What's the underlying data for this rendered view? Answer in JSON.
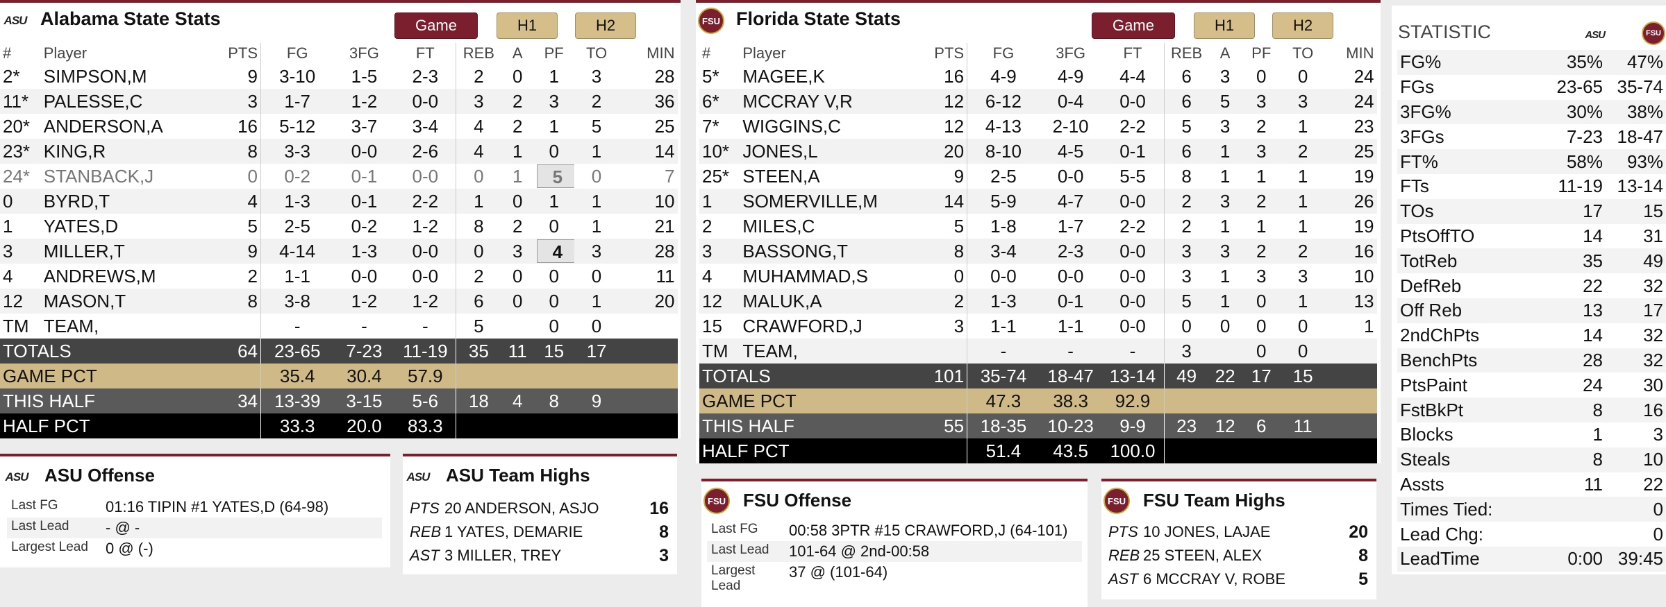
{
  "colors": {
    "accent": "#7b1f2e",
    "gold": "#cfb987",
    "dark": "#444444",
    "black": "#000000"
  },
  "asu": {
    "logo_text": "ASU",
    "title": "Alabama State Stats",
    "tabs": [
      "Game",
      "H1",
      "H2"
    ],
    "headers": [
      "#",
      "Player",
      "PTS",
      "FG",
      "3FG",
      "FT",
      "REB",
      "A",
      "PF",
      "TO",
      "MIN"
    ],
    "players": [
      {
        "num": "2*",
        "name": "SIMPSON,M",
        "pts": "9",
        "fg": "3-10",
        "tfg": "1-5",
        "ft": "2-3",
        "reb": "2",
        "a": "0",
        "pf": "1",
        "to": "3",
        "min": "28"
      },
      {
        "num": "11*",
        "name": "PALESSE,C",
        "pts": "3",
        "fg": "1-7",
        "tfg": "1-2",
        "ft": "0-0",
        "reb": "3",
        "a": "2",
        "pf": "3",
        "to": "2",
        "min": "36"
      },
      {
        "num": "20*",
        "name": "ANDERSON,A",
        "pts": "16",
        "fg": "5-12",
        "tfg": "3-7",
        "ft": "3-4",
        "reb": "4",
        "a": "2",
        "pf": "1",
        "to": "5",
        "min": "25"
      },
      {
        "num": "23*",
        "name": "KING,R",
        "pts": "8",
        "fg": "3-3",
        "tfg": "0-0",
        "ft": "2-6",
        "reb": "4",
        "a": "1",
        "pf": "0",
        "to": "1",
        "min": "14"
      },
      {
        "num": "24*",
        "name": "STANBACK,J",
        "pts": "0",
        "fg": "0-2",
        "tfg": "0-1",
        "ft": "0-0",
        "reb": "0",
        "a": "1",
        "pf": "5",
        "to": "0",
        "min": "7"
      },
      {
        "num": "0",
        "name": "BYRD,T",
        "pts": "4",
        "fg": "1-3",
        "tfg": "0-1",
        "ft": "2-2",
        "reb": "1",
        "a": "0",
        "pf": "1",
        "to": "1",
        "min": "10"
      },
      {
        "num": "1",
        "name": "YATES,D",
        "pts": "5",
        "fg": "2-5",
        "tfg": "0-2",
        "ft": "1-2",
        "reb": "8",
        "a": "2",
        "pf": "0",
        "to": "1",
        "min": "21"
      },
      {
        "num": "3",
        "name": "MILLER,T",
        "pts": "9",
        "fg": "4-14",
        "tfg": "1-3",
        "ft": "0-0",
        "reb": "0",
        "a": "3",
        "pf": "4",
        "to": "3",
        "min": "28"
      },
      {
        "num": "4",
        "name": "ANDREWS,M",
        "pts": "2",
        "fg": "1-1",
        "tfg": "0-0",
        "ft": "0-0",
        "reb": "2",
        "a": "0",
        "pf": "0",
        "to": "0",
        "min": "11"
      },
      {
        "num": "12",
        "name": "MASON,T",
        "pts": "8",
        "fg": "3-8",
        "tfg": "1-2",
        "ft": "1-2",
        "reb": "6",
        "a": "0",
        "pf": "0",
        "to": "1",
        "min": "20"
      },
      {
        "num": "TM",
        "name": "TEAM,",
        "pts": "",
        "fg": "-",
        "tfg": "-",
        "ft": "-",
        "reb": "5",
        "a": "",
        "pf": "0",
        "to": "0",
        "min": ""
      }
    ],
    "totals": {
      "label": "TOTALS",
      "pts": "64",
      "fg": "23-65",
      "tfg": "7-23",
      "ft": "11-19",
      "reb": "35",
      "a": "11",
      "pf": "15",
      "to": "17"
    },
    "game_pct": {
      "label": "GAME PCT",
      "fg": "35.4",
      "tfg": "30.4",
      "ft": "57.9"
    },
    "this_half": {
      "label": "THIS HALF",
      "pts": "34",
      "fg": "13-39",
      "tfg": "3-15",
      "ft": "5-6",
      "reb": "18",
      "a": "4",
      "pf": "8",
      "to": "9"
    },
    "half_pct": {
      "label": "HALF PCT",
      "fg": "33.3",
      "tfg": "20.0",
      "ft": "83.3"
    },
    "offense": {
      "title": "ASU Offense",
      "rows": [
        {
          "k": "Last FG",
          "v": "01:16 TIPIN #1 YATES,D (64-98)"
        },
        {
          "k": "Last Lead",
          "v": "- @ -"
        },
        {
          "k": "Largest Lead",
          "v": "0 @ (-)"
        }
      ]
    },
    "highs": {
      "title": "ASU Team Highs",
      "rows": [
        {
          "cat": "PTS",
          "who": "20 ANDERSON, ASJO",
          "v": "16"
        },
        {
          "cat": "REB",
          "who": "1 YATES, DEMARIE",
          "v": "8"
        },
        {
          "cat": "AST",
          "who": "3 MILLER, TREY",
          "v": "3"
        }
      ]
    }
  },
  "fsu": {
    "logo_text": "FSU",
    "title": "Florida State Stats",
    "tabs": [
      "Game",
      "H1",
      "H2"
    ],
    "headers": [
      "#",
      "Player",
      "PTS",
      "FG",
      "3FG",
      "FT",
      "REB",
      "A",
      "PF",
      "TO",
      "MIN"
    ],
    "players": [
      {
        "num": "5*",
        "name": "MAGEE,K",
        "pts": "16",
        "fg": "4-9",
        "tfg": "4-9",
        "ft": "4-4",
        "reb": "6",
        "a": "3",
        "pf": "0",
        "to": "0",
        "min": "24"
      },
      {
        "num": "6*",
        "name": "MCCRAY V,R",
        "pts": "12",
        "fg": "6-12",
        "tfg": "0-4",
        "ft": "0-0",
        "reb": "6",
        "a": "5",
        "pf": "3",
        "to": "3",
        "min": "24"
      },
      {
        "num": "7*",
        "name": "WIGGINS,C",
        "pts": "12",
        "fg": "4-13",
        "tfg": "2-10",
        "ft": "2-2",
        "reb": "5",
        "a": "3",
        "pf": "2",
        "to": "1",
        "min": "23"
      },
      {
        "num": "10*",
        "name": "JONES,L",
        "pts": "20",
        "fg": "8-10",
        "tfg": "4-5",
        "ft": "0-1",
        "reb": "6",
        "a": "1",
        "pf": "3",
        "to": "2",
        "min": "25"
      },
      {
        "num": "25*",
        "name": "STEEN,A",
        "pts": "9",
        "fg": "2-5",
        "tfg": "0-0",
        "ft": "5-5",
        "reb": "8",
        "a": "1",
        "pf": "1",
        "to": "1",
        "min": "19"
      },
      {
        "num": "1",
        "name": "SOMERVILLE,M",
        "pts": "14",
        "fg": "5-9",
        "tfg": "4-7",
        "ft": "0-0",
        "reb": "2",
        "a": "3",
        "pf": "2",
        "to": "1",
        "min": "26"
      },
      {
        "num": "2",
        "name": "MILES,C",
        "pts": "5",
        "fg": "1-8",
        "tfg": "1-7",
        "ft": "2-2",
        "reb": "2",
        "a": "1",
        "pf": "1",
        "to": "1",
        "min": "19"
      },
      {
        "num": "3",
        "name": "BASSONG,T",
        "pts": "8",
        "fg": "3-4",
        "tfg": "2-3",
        "ft": "0-0",
        "reb": "3",
        "a": "3",
        "pf": "2",
        "to": "2",
        "min": "16"
      },
      {
        "num": "4",
        "name": "MUHAMMAD,S",
        "pts": "0",
        "fg": "0-0",
        "tfg": "0-0",
        "ft": "0-0",
        "reb": "3",
        "a": "1",
        "pf": "3",
        "to": "3",
        "min": "10"
      },
      {
        "num": "12",
        "name": "MALUK,A",
        "pts": "2",
        "fg": "1-3",
        "tfg": "0-1",
        "ft": "0-0",
        "reb": "5",
        "a": "1",
        "pf": "0",
        "to": "1",
        "min": "13"
      },
      {
        "num": "15",
        "name": "CRAWFORD,J",
        "pts": "3",
        "fg": "1-1",
        "tfg": "1-1",
        "ft": "0-0",
        "reb": "0",
        "a": "0",
        "pf": "0",
        "to": "0",
        "min": "1"
      },
      {
        "num": "TM",
        "name": "TEAM,",
        "pts": "",
        "fg": "-",
        "tfg": "-",
        "ft": "-",
        "reb": "3",
        "a": "",
        "pf": "0",
        "to": "0",
        "min": ""
      }
    ],
    "totals": {
      "label": "TOTALS",
      "pts": "101",
      "fg": "35-74",
      "tfg": "18-47",
      "ft": "13-14",
      "reb": "49",
      "a": "22",
      "pf": "17",
      "to": "15"
    },
    "game_pct": {
      "label": "GAME PCT",
      "fg": "47.3",
      "tfg": "38.3",
      "ft": "92.9"
    },
    "this_half": {
      "label": "THIS HALF",
      "pts": "55",
      "fg": "18-35",
      "tfg": "10-23",
      "ft": "9-9",
      "reb": "23",
      "a": "12",
      "pf": "6",
      "to": "11"
    },
    "half_pct": {
      "label": "HALF PCT",
      "fg": "51.4",
      "tfg": "43.5",
      "ft": "100.0"
    },
    "offense": {
      "title": "FSU Offense",
      "rows": [
        {
          "k": "Last FG",
          "v": "00:58 3PTR #15 CRAWFORD,J (64-101)"
        },
        {
          "k": "Last Lead",
          "v": "101-64 @ 2nd-00:58"
        },
        {
          "k": "Largest Lead",
          "v": "37 @ (101-64)"
        }
      ]
    },
    "highs": {
      "title": "FSU Team Highs",
      "rows": [
        {
          "cat": "PTS",
          "who": "10 JONES, LAJAE",
          "v": "20"
        },
        {
          "cat": "REB",
          "who": "25 STEEN, ALEX",
          "v": "8"
        },
        {
          "cat": "AST",
          "who": "6 MCCRAY V, ROBE",
          "v": "5"
        }
      ]
    }
  },
  "comparison": {
    "header": "STATISTIC",
    "rows": [
      {
        "k": "FG%",
        "a": "35%",
        "b": "47%"
      },
      {
        "k": "FGs",
        "a": "23-65",
        "b": "35-74"
      },
      {
        "k": "3FG%",
        "a": "30%",
        "b": "38%"
      },
      {
        "k": "3FGs",
        "a": "7-23",
        "b": "18-47"
      },
      {
        "k": "FT%",
        "a": "58%",
        "b": "93%"
      },
      {
        "k": "FTs",
        "a": "11-19",
        "b": "13-14"
      },
      {
        "k": "TOs",
        "a": "17",
        "b": "15"
      },
      {
        "k": "PtsOffTO",
        "a": "14",
        "b": "31"
      },
      {
        "k": "TotReb",
        "a": "35",
        "b": "49"
      },
      {
        "k": "DefReb",
        "a": "22",
        "b": "32"
      },
      {
        "k": "Off Reb",
        "a": "13",
        "b": "17"
      },
      {
        "k": "2ndChPts",
        "a": "14",
        "b": "32"
      },
      {
        "k": "BenchPts",
        "a": "28",
        "b": "32"
      },
      {
        "k": "PtsPaint",
        "a": "24",
        "b": "30"
      },
      {
        "k": "FstBkPt",
        "a": "8",
        "b": "16"
      },
      {
        "k": "Blocks",
        "a": "1",
        "b": "3"
      },
      {
        "k": "Steals",
        "a": "8",
        "b": "10"
      },
      {
        "k": "Assts",
        "a": "11",
        "b": "22"
      },
      {
        "k": "Times Tied:",
        "a": "",
        "b": "0"
      },
      {
        "k": "Lead Chg:",
        "a": "",
        "b": "0"
      },
      {
        "k": "LeadTime",
        "a": "0:00",
        "b": "39:45"
      }
    ]
  }
}
